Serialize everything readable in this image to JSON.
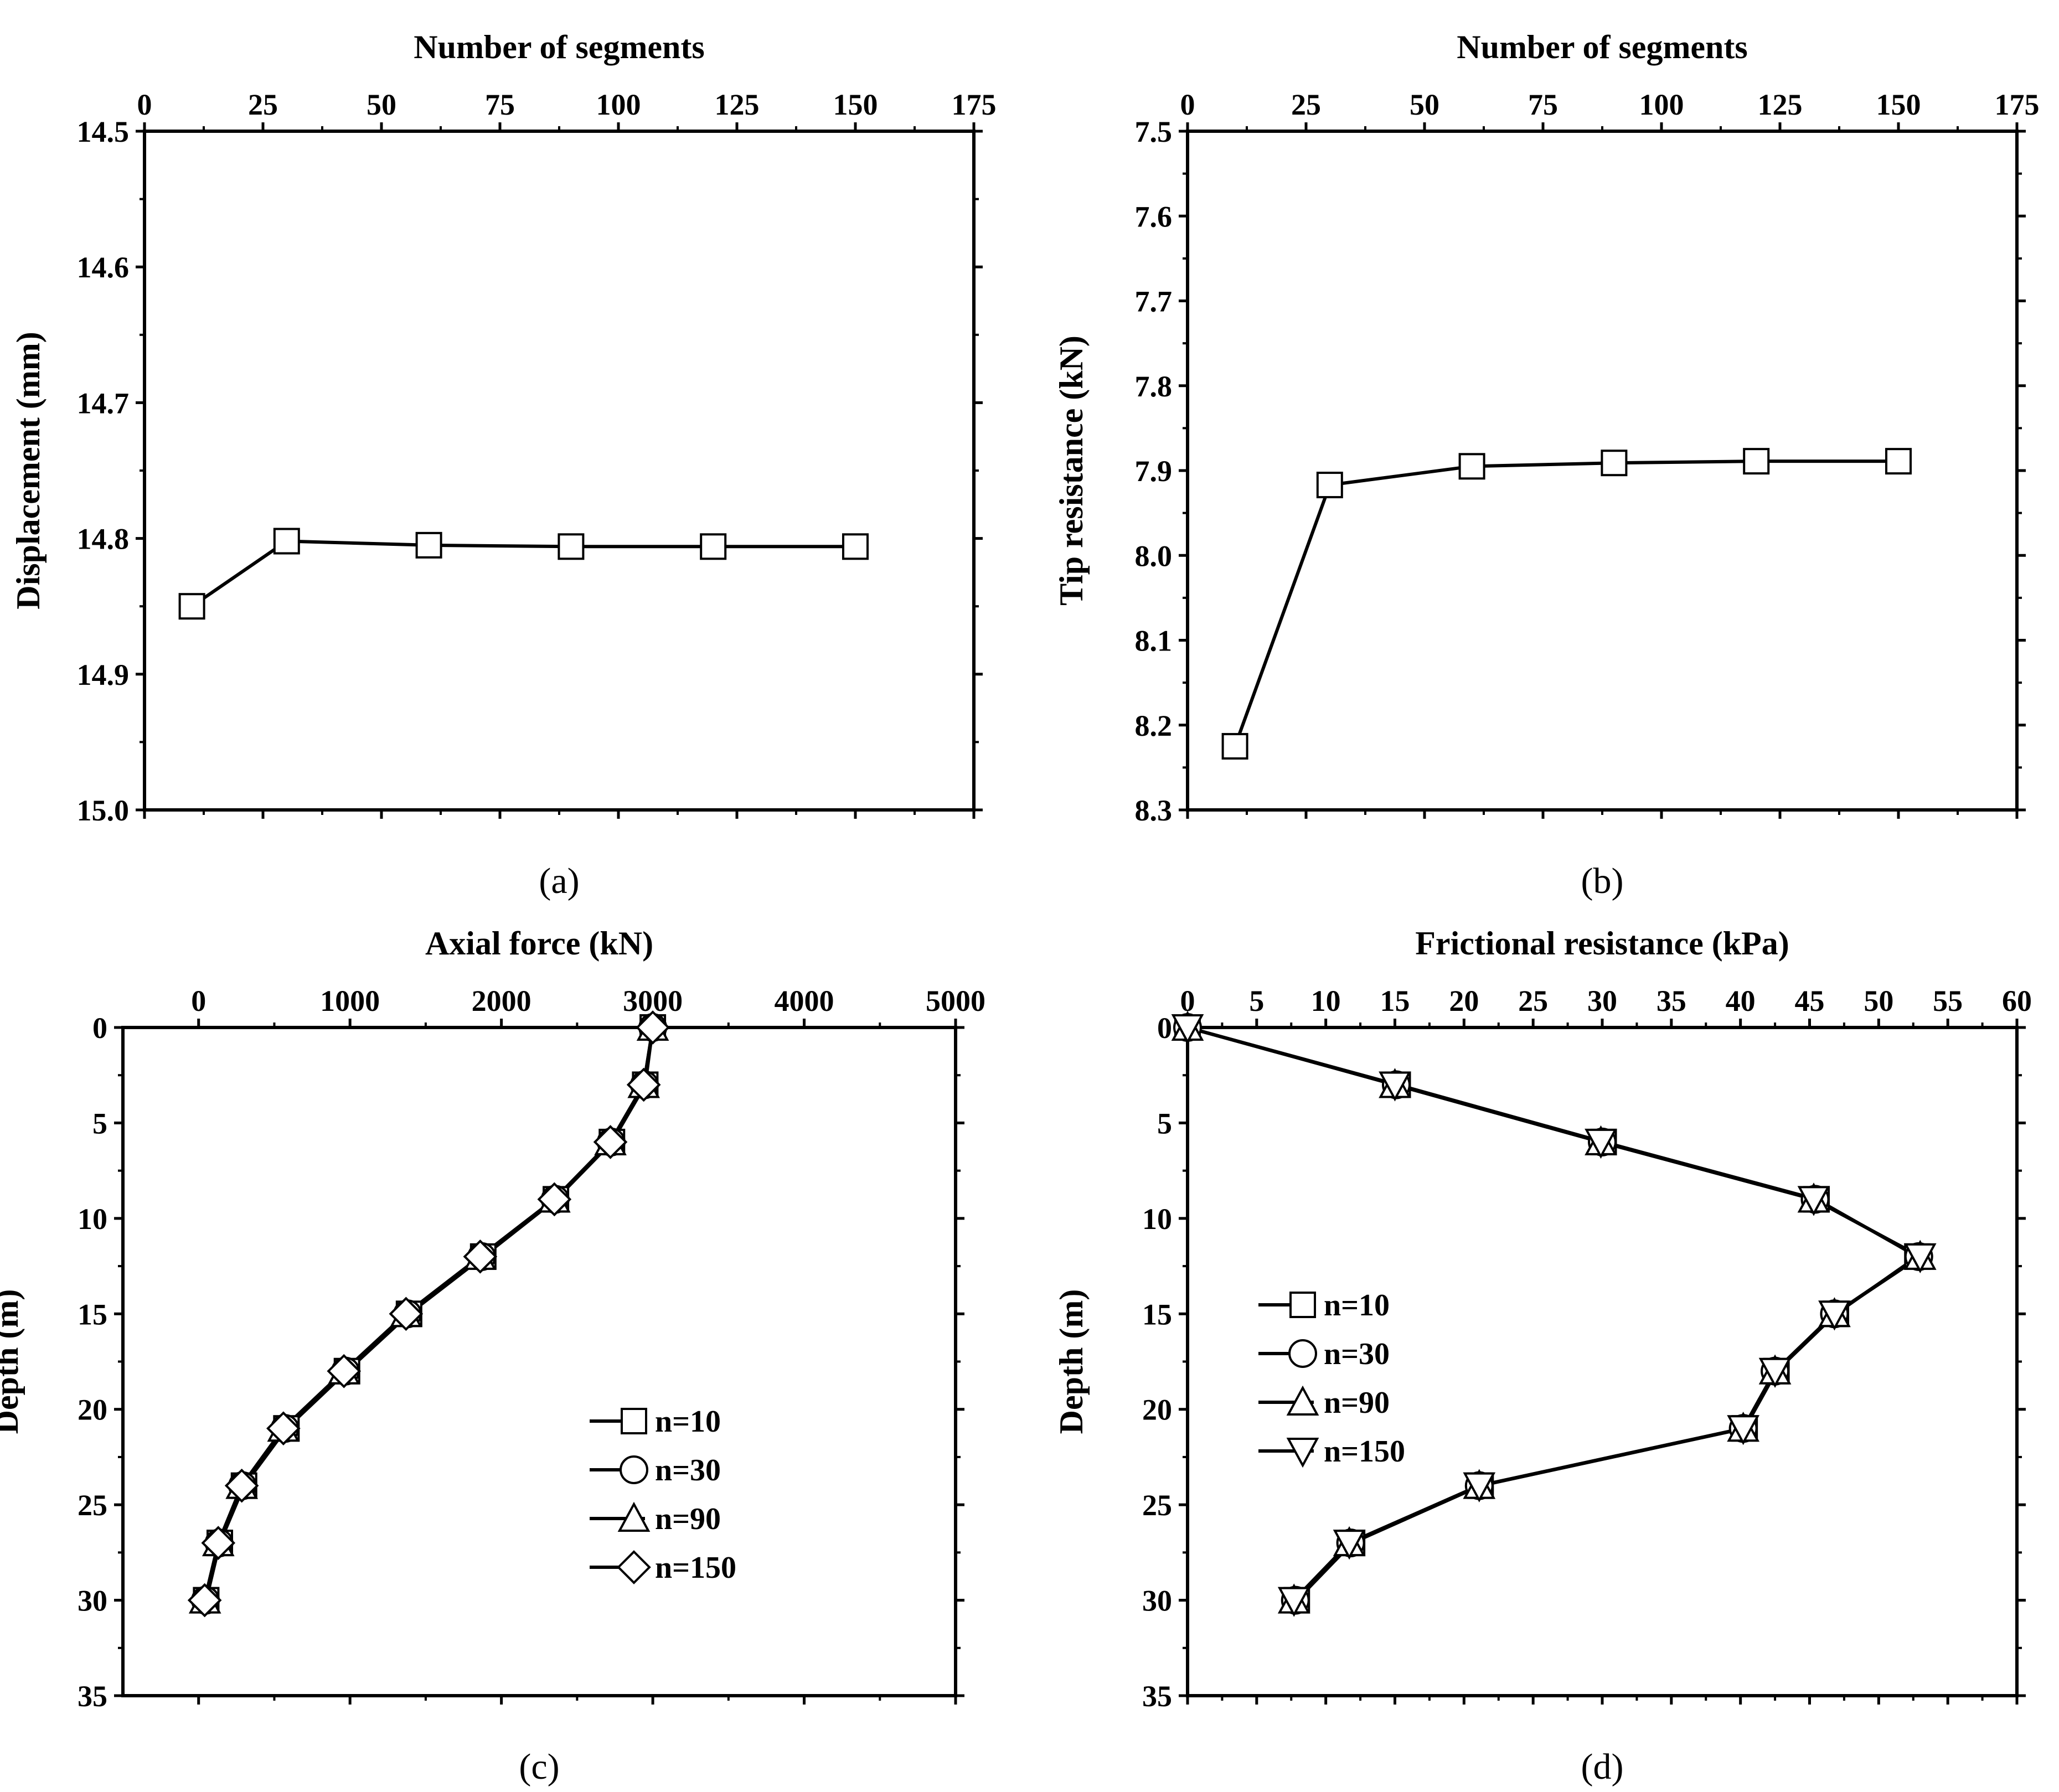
{
  "colors": {
    "ink": "#000000",
    "marker_fill": "#ffffff",
    "background": "#ffffff"
  },
  "chart_data": [
    {
      "id": "a",
      "type": "line",
      "caption": "(a)",
      "title": "Number of segments",
      "xlabel": "Number of segments",
      "ylabel": "Displacement (mm)",
      "x_axis_position": "top",
      "y_inverted": true,
      "xlim": [
        0,
        175
      ],
      "ylim": [
        14.5,
        15.0
      ],
      "x_ticks": [
        0,
        25,
        50,
        75,
        100,
        125,
        150,
        175
      ],
      "x_tick_labels": [
        "0",
        "25",
        "50",
        "75",
        "100",
        "125",
        "150",
        "175"
      ],
      "y_ticks": [
        14.5,
        14.6,
        14.7,
        14.8,
        14.9,
        15.0
      ],
      "y_tick_labels": [
        "14.5",
        "14.6",
        "14.7",
        "14.8",
        "14.9",
        "15.0"
      ],
      "legend": null,
      "series": [
        {
          "name": "",
          "marker": "square",
          "points": [
            [
              10,
              14.85
            ],
            [
              30,
              14.802
            ],
            [
              60,
              14.805
            ],
            [
              90,
              14.806
            ],
            [
              120,
              14.806
            ],
            [
              150,
              14.806
            ]
          ]
        }
      ]
    },
    {
      "id": "b",
      "type": "line",
      "caption": "(b)",
      "title": "Number of segments",
      "xlabel": "Number of segments",
      "ylabel": "Tip resistance (kN)",
      "x_axis_position": "top",
      "y_inverted": true,
      "xlim": [
        0,
        175
      ],
      "ylim": [
        7.5,
        8.3
      ],
      "x_ticks": [
        0,
        25,
        50,
        75,
        100,
        125,
        150,
        175
      ],
      "x_tick_labels": [
        "0",
        "25",
        "50",
        "75",
        "100",
        "125",
        "150",
        "175"
      ],
      "y_ticks": [
        7.5,
        7.6,
        7.7,
        7.8,
        7.9,
        8.0,
        8.1,
        8.2,
        8.3
      ],
      "y_tick_labels": [
        "7.5",
        "7.6",
        "7.7",
        "7.8",
        "7.9",
        "8.0",
        "8.1",
        "8.2",
        "8.3"
      ],
      "legend": null,
      "series": [
        {
          "name": "",
          "marker": "square",
          "points": [
            [
              10,
              8.225
            ],
            [
              30,
              7.917
            ],
            [
              60,
              7.895
            ],
            [
              90,
              7.891
            ],
            [
              120,
              7.889
            ],
            [
              150,
              7.889
            ]
          ]
        }
      ]
    },
    {
      "id": "c",
      "type": "line",
      "caption": "(c)",
      "title": "Axial force (kN)",
      "xlabel": "Axial force (kN)",
      "ylabel": "Depth (m)",
      "x_axis_position": "top",
      "y_inverted": true,
      "xlim": [
        -500,
        5000
      ],
      "ylim": [
        0,
        35
      ],
      "x_ticks": [
        0,
        1000,
        2000,
        3000,
        4000,
        5000
      ],
      "x_tick_labels": [
        "0",
        "1000",
        "2000",
        "3000",
        "4000",
        "5000"
      ],
      "y_ticks": [
        0,
        5,
        10,
        15,
        20,
        25,
        30,
        35
      ],
      "y_tick_labels": [
        "0",
        "5",
        "10",
        "15",
        "20",
        "25",
        "30",
        "35"
      ],
      "legend": {
        "position": "center-right",
        "items": [
          "n=10",
          "n=30",
          "n=90",
          "n=150"
        ]
      },
      "series": [
        {
          "name": "n=10",
          "marker": "square",
          "points": [
            [
              3000,
              0
            ],
            [
              2950,
              3
            ],
            [
              2730,
              6
            ],
            [
              2360,
              9
            ],
            [
              1880,
              12
            ],
            [
              1390,
              15
            ],
            [
              980,
              18
            ],
            [
              580,
              21
            ],
            [
              300,
              24
            ],
            [
              140,
              27
            ],
            [
              50,
              30
            ]
          ]
        },
        {
          "name": "n=30",
          "marker": "circle",
          "points": [
            [
              3000,
              0
            ],
            [
              2945,
              3
            ],
            [
              2725,
              6
            ],
            [
              2355,
              9
            ],
            [
              1870,
              12
            ],
            [
              1380,
              15
            ],
            [
              970,
              18
            ],
            [
              570,
              21
            ],
            [
              290,
              24
            ],
            [
              135,
              27
            ],
            [
              45,
              30
            ]
          ]
        },
        {
          "name": "n=90",
          "marker": "triangle-up",
          "points": [
            [
              3000,
              0
            ],
            [
              2940,
              3
            ],
            [
              2720,
              6
            ],
            [
              2350,
              9
            ],
            [
              1860,
              12
            ],
            [
              1370,
              15
            ],
            [
              960,
              18
            ],
            [
              560,
              21
            ],
            [
              285,
              24
            ],
            [
              130,
              27
            ],
            [
              42,
              30
            ]
          ]
        },
        {
          "name": "n=150",
          "marker": "diamond",
          "points": [
            [
              3000,
              0
            ],
            [
              2940,
              3
            ],
            [
              2720,
              6
            ],
            [
              2350,
              9
            ],
            [
              1860,
              12
            ],
            [
              1370,
              15
            ],
            [
              960,
              18
            ],
            [
              560,
              21
            ],
            [
              285,
              24
            ],
            [
              130,
              27
            ],
            [
              40,
              30
            ]
          ]
        }
      ]
    },
    {
      "id": "d",
      "type": "line",
      "caption": "(d)",
      "title": "Frictional resistance (kPa)",
      "xlabel": "Frictional resistance (kPa)",
      "ylabel": "Depth (m)",
      "x_axis_position": "top",
      "y_inverted": true,
      "xlim": [
        0,
        60
      ],
      "ylim": [
        0,
        35
      ],
      "x_ticks": [
        0,
        5,
        10,
        15,
        20,
        25,
        30,
        35,
        40,
        45,
        50,
        55,
        60
      ],
      "x_tick_labels": [
        "0",
        "5",
        "10",
        "15",
        "20",
        "25",
        "30",
        "35",
        "40",
        "45",
        "50",
        "55",
        "60"
      ],
      "y_ticks": [
        0,
        5,
        10,
        15,
        20,
        25,
        30,
        35
      ],
      "y_tick_labels": [
        "0",
        "5",
        "10",
        "15",
        "20",
        "25",
        "30",
        "35"
      ],
      "legend": {
        "position": "center-left",
        "items": [
          "n=10",
          "n=30",
          "n=90",
          "n=150"
        ]
      },
      "series": [
        {
          "name": "n=10",
          "marker": "square",
          "points": [
            [
              0,
              0
            ],
            [
              15.2,
              3
            ],
            [
              30.1,
              6
            ],
            [
              45.5,
              9
            ],
            [
              52.8,
              12
            ],
            [
              46.9,
              15
            ],
            [
              42.6,
              18
            ],
            [
              40.3,
              21
            ],
            [
              21.2,
              24
            ],
            [
              11.9,
              27
            ],
            [
              7.9,
              30
            ]
          ]
        },
        {
          "name": "n=30",
          "marker": "circle",
          "points": [
            [
              0,
              0
            ],
            [
              15.1,
              3
            ],
            [
              30.0,
              6
            ],
            [
              45.4,
              9
            ],
            [
              52.9,
              12
            ],
            [
              46.8,
              15
            ],
            [
              42.5,
              18
            ],
            [
              40.2,
              21
            ],
            [
              21.1,
              24
            ],
            [
              11.8,
              27
            ],
            [
              7.8,
              30
            ]
          ]
        },
        {
          "name": "n=90",
          "marker": "triangle-up",
          "points": [
            [
              0,
              0
            ],
            [
              15.0,
              3
            ],
            [
              29.9,
              6
            ],
            [
              45.3,
              9
            ],
            [
              53.0,
              12
            ],
            [
              46.8,
              15
            ],
            [
              42.5,
              18
            ],
            [
              40.2,
              21
            ],
            [
              21.1,
              24
            ],
            [
              11.7,
              27
            ],
            [
              7.7,
              30
            ]
          ]
        },
        {
          "name": "n=150",
          "marker": "triangle-down",
          "points": [
            [
              0,
              0
            ],
            [
              15.0,
              3
            ],
            [
              29.9,
              6
            ],
            [
              45.3,
              9
            ],
            [
              53.0,
              12
            ],
            [
              46.8,
              15
            ],
            [
              42.5,
              18
            ],
            [
              40.2,
              21
            ],
            [
              21.1,
              24
            ],
            [
              11.7,
              27
            ],
            [
              7.7,
              30
            ]
          ]
        }
      ]
    }
  ]
}
